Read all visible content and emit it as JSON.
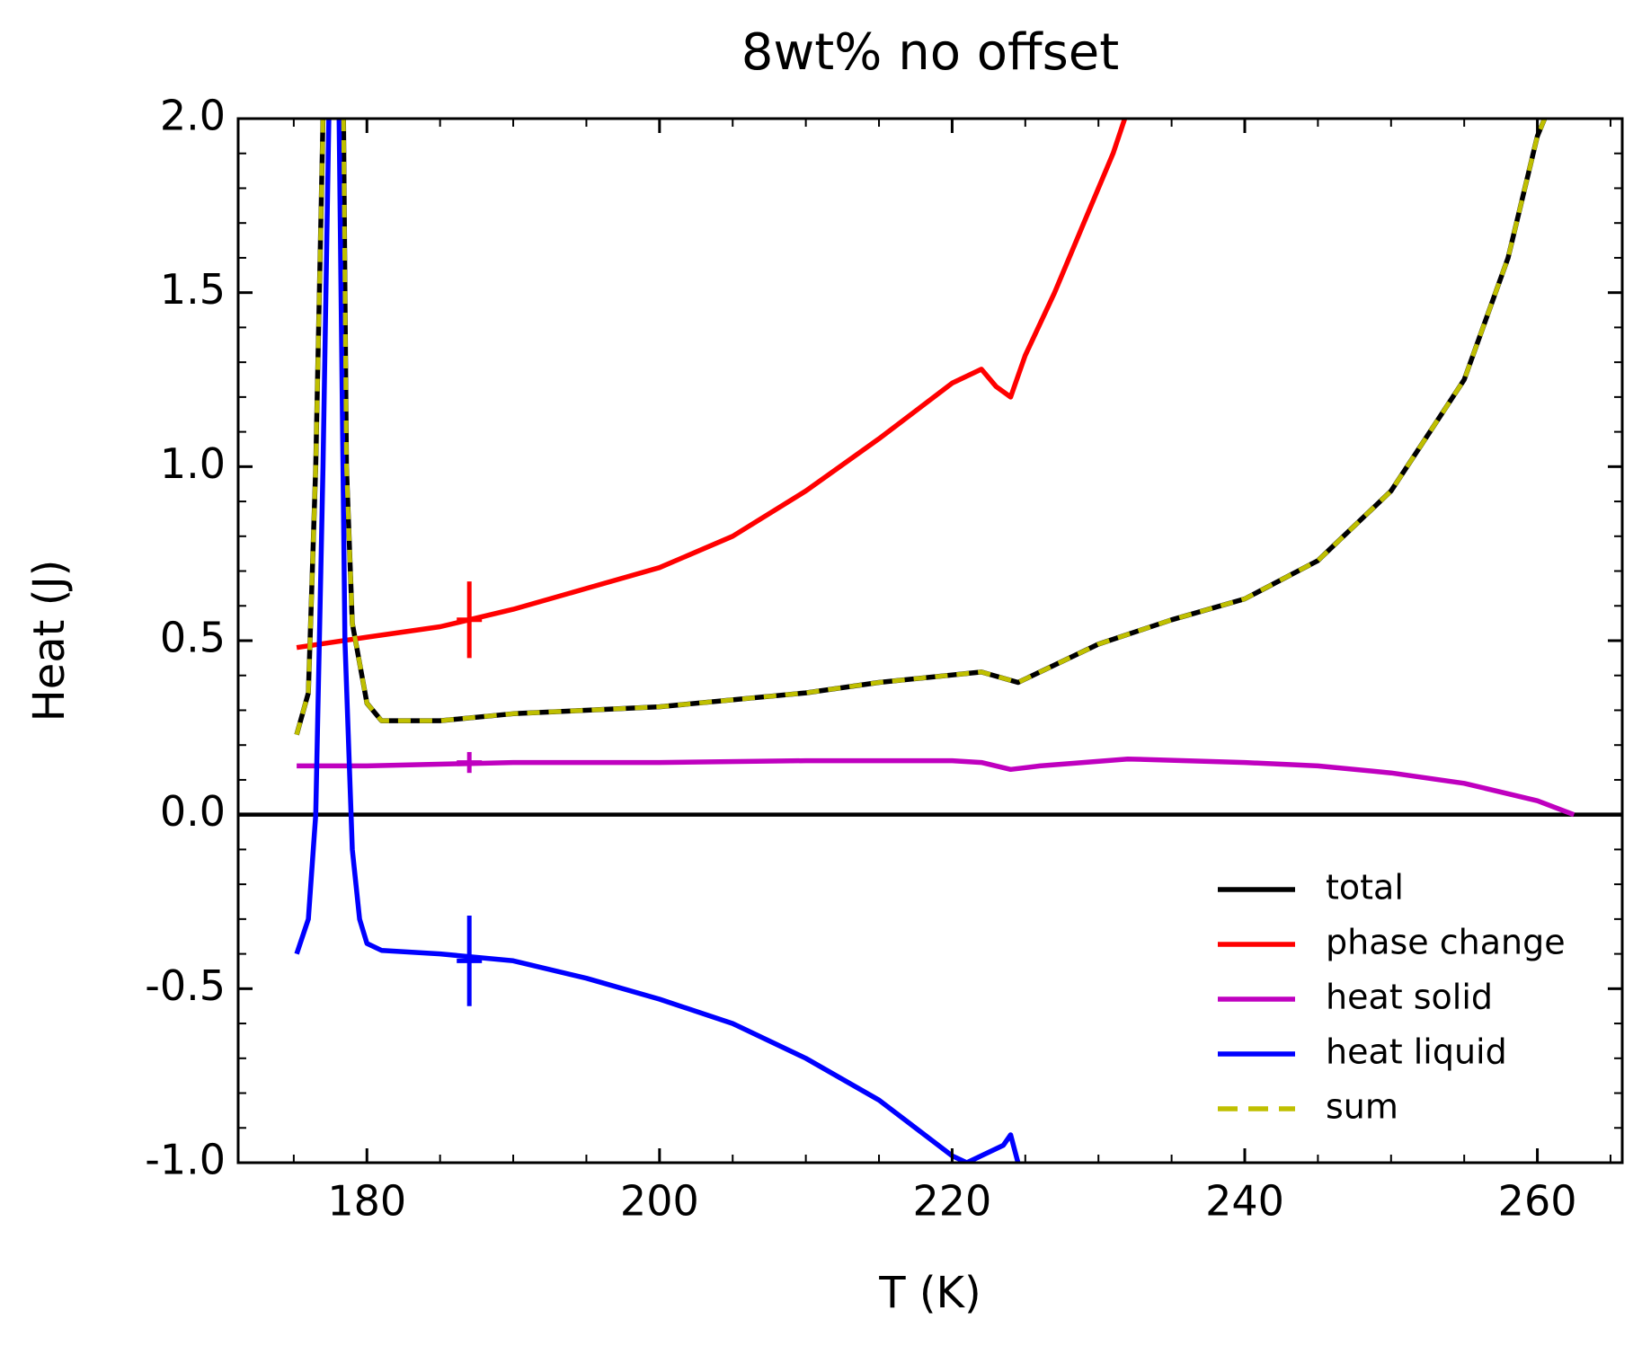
{
  "chart_data": {
    "type": "line",
    "title": "8wt% no offset",
    "xlabel": "T (K)",
    "ylabel": "Heat (J)",
    "xlim": [
      171.2,
      265.8
    ],
    "ylim": [
      -1,
      2
    ],
    "xticks": [
      180,
      200,
      220,
      240,
      260
    ],
    "yticks": [
      {
        "value": -1,
        "label": "-1.0"
      },
      {
        "value": -0.5,
        "label": "-0.5"
      },
      {
        "value": 0,
        "label": "0.0"
      },
      {
        "value": 0.5,
        "label": "0.5"
      },
      {
        "value": 1,
        "label": "1.0"
      },
      {
        "value": 1.5,
        "label": "1.5"
      },
      {
        "value": 2,
        "label": "2.0"
      }
    ],
    "hline": 0,
    "legend": "lower right",
    "series": [
      {
        "name": "total",
        "color": "#000000",
        "dash": false,
        "x": [
          175.2,
          176,
          176.5,
          177,
          null,
          178.4,
          178.6,
          179,
          180,
          181,
          185,
          190,
          200,
          210,
          215,
          222,
          224.5,
          230,
          235,
          240,
          245,
          250,
          255,
          258,
          260,
          260.5
        ],
        "values": [
          0.23,
          0.35,
          1.0,
          2.0,
          null,
          2.0,
          1.0,
          0.55,
          0.32,
          0.27,
          0.27,
          0.29,
          0.31,
          0.35,
          0.38,
          0.41,
          0.38,
          0.49,
          0.56,
          0.62,
          0.73,
          0.93,
          1.25,
          1.6,
          1.95,
          2.0
        ]
      },
      {
        "name": "phase change",
        "color": "#ff0000",
        "dash": false,
        "x": [
          175.2,
          180,
          185,
          190,
          195,
          200,
          205,
          210,
          215,
          220,
          222,
          223,
          224,
          225,
          227,
          229,
          231,
          231.8
        ],
        "values": [
          0.48,
          0.51,
          0.54,
          0.59,
          0.65,
          0.71,
          0.8,
          0.93,
          1.08,
          1.24,
          1.28,
          1.23,
          1.2,
          1.32,
          1.5,
          1.7,
          1.9,
          2.0
        ],
        "errorbar": {
          "x": 187,
          "value": 0.56,
          "err": 0.11
        }
      },
      {
        "name": "heat solid",
        "color": "#bf00bf",
        "dash": false,
        "x": [
          175.2,
          180,
          190,
          200,
          210,
          220,
          222,
          224,
          226,
          232,
          240,
          245,
          250,
          255,
          260,
          262.5
        ],
        "values": [
          0.14,
          0.14,
          0.15,
          0.15,
          0.155,
          0.155,
          0.15,
          0.13,
          0.14,
          0.16,
          0.15,
          0.14,
          0.12,
          0.09,
          0.04,
          0.0
        ],
        "errorbar": {
          "x": 187,
          "value": 0.15,
          "err": 0.03
        }
      },
      {
        "name": "heat liquid",
        "color": "#0000ff",
        "dash": false,
        "x": [
          175.2,
          176,
          176.5,
          177,
          177.4,
          null,
          178.1,
          178.5,
          179,
          179.5,
          180,
          181,
          185,
          190,
          195,
          200,
          205,
          210,
          215,
          220,
          221,
          223.5,
          224,
          224.5
        ],
        "values": [
          -0.4,
          -0.3,
          0.0,
          1.0,
          2.0,
          null,
          2.0,
          0.5,
          -0.1,
          -0.3,
          -0.37,
          -0.39,
          -0.4,
          -0.42,
          -0.47,
          -0.53,
          -0.6,
          -0.7,
          -0.82,
          -0.98,
          -1.0,
          -0.95,
          -0.92,
          -1.0
        ],
        "errorbar": {
          "x": 187,
          "value": -0.42,
          "err": 0.13
        }
      },
      {
        "name": "sum",
        "color": "#bfbf00",
        "dash": true,
        "x": [
          175.2,
          176,
          176.5,
          177,
          null,
          178.4,
          178.6,
          179,
          180,
          181,
          185,
          190,
          200,
          210,
          215,
          222,
          224.5,
          230,
          235,
          240,
          245,
          250,
          255,
          258,
          260,
          260.5
        ],
        "values": [
          0.23,
          0.35,
          1.0,
          2.0,
          null,
          2.0,
          1.0,
          0.55,
          0.32,
          0.27,
          0.27,
          0.29,
          0.31,
          0.35,
          0.38,
          0.41,
          0.38,
          0.49,
          0.56,
          0.62,
          0.73,
          0.93,
          1.25,
          1.6,
          1.95,
          2.0
        ]
      }
    ]
  }
}
